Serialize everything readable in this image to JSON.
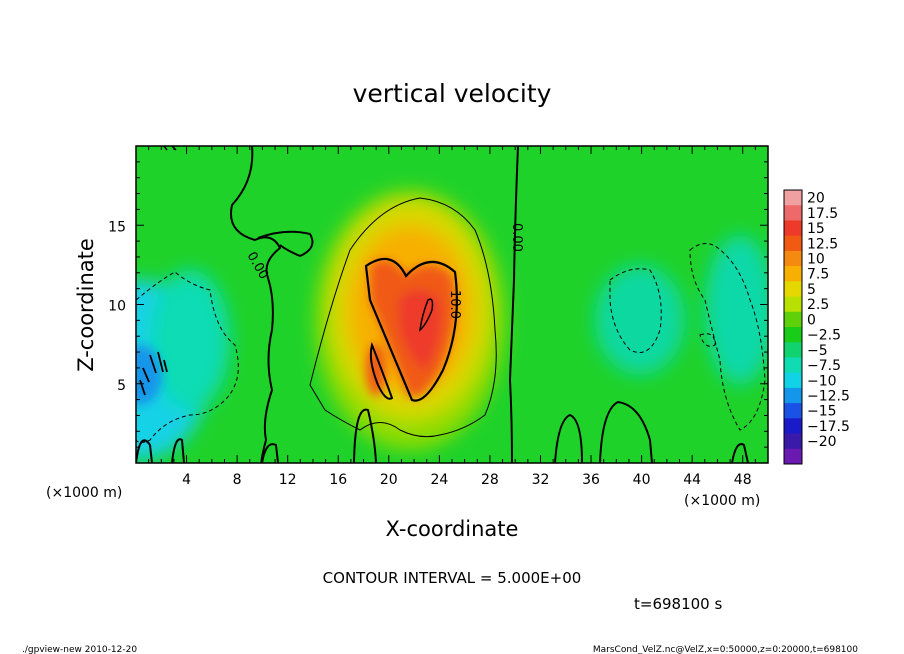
{
  "chart_data": {
    "type": "heatmap",
    "title": "vertical velocity",
    "xlabel": "X-coordinate",
    "ylabel": "Z-coordinate",
    "x_unit": "(×1000 m)",
    "y_unit": "(×1000 m)",
    "xlim": [
      0,
      50
    ],
    "ylim": [
      0,
      20
    ],
    "x_ticks": [
      4,
      8,
      12,
      16,
      20,
      24,
      28,
      32,
      36,
      40,
      44,
      48
    ],
    "y_ticks": [
      5,
      10,
      15
    ],
    "colorbar": {
      "labels": [
        "20",
        "17.5",
        "15",
        "12.5",
        "10",
        "7.5",
        "5",
        "2.5",
        "0",
        "−2.5",
        "−5",
        "−7.5",
        "−10",
        "−12.5",
        "−15",
        "−17.5",
        "−20"
      ],
      "colors": [
        "#f0a0a0",
        "#ee6a6a",
        "#ee3a2a",
        "#f05a12",
        "#f58a10",
        "#f7b000",
        "#e5d800",
        "#b8e000",
        "#5fd10a",
        "#18cc18",
        "#10d26e",
        "#10dcb4",
        "#12d2e6",
        "#1496ea",
        "#1a52e6",
        "#1a1ac8",
        "#3a1aa8",
        "#6a1ab0"
      ]
    },
    "contour_labels": [
      {
        "text": "0.00",
        "x": 10.4,
        "z": 13.2
      },
      {
        "text": "0.00",
        "x": 30.8,
        "z": 14.0
      },
      {
        "text": "10.0",
        "x": 24.8,
        "z": 10.0
      }
    ],
    "contour_interval": "CONTOUR INTERVAL = 5.000E+00",
    "time": "t=698100 s"
  },
  "footer": {
    "left": "./gpview-new  2010-12-20",
    "right": "MarsCond_VelZ.nc@VelZ,x=0:50000,z=0:20000,t=698100"
  }
}
